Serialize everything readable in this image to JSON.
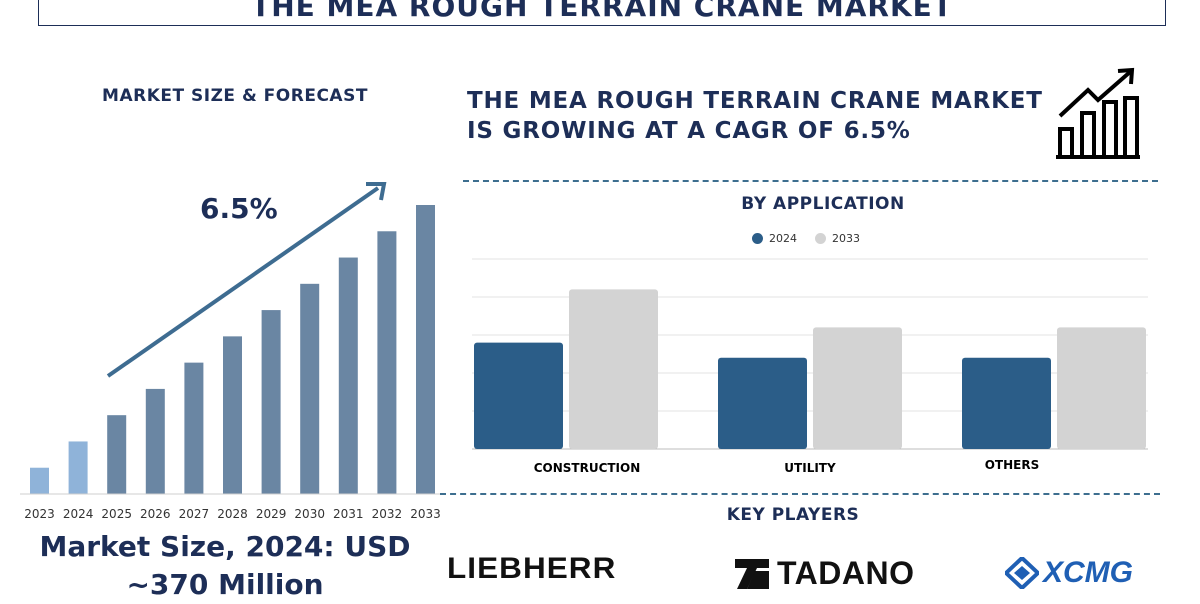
{
  "title": "THE MEA ROUGH TERRAIN CRANE MARKET",
  "left_panel": {
    "heading": "MARKET SIZE & FORECAST",
    "cagr_label": "6.5%",
    "market_size_line1": "Market Size, 2024: USD",
    "market_size_line2": "~370 Million"
  },
  "right_panel": {
    "headline_line1": "THE MEA ROUGH TERRAIN CRANE MARKET",
    "headline_line2": "IS GROWING AT A CAGR OF 6.5%",
    "application_heading": "BY APPLICATION",
    "key_players_heading": "KEY PLAYERS",
    "players": [
      "LIEBHERR",
      "TADANO",
      "XCMG"
    ]
  },
  "colors": {
    "navy": "#1d2e57",
    "bar_history": "#8fb3d9",
    "bar_forecast": "#6a86a3",
    "series_2024": "#2b5d88",
    "series_2033": "#d3d3d3",
    "xcmg_blue": "#1f5fb4"
  },
  "icons": [
    "growth-chart-icon",
    "tadano-logo-icon",
    "xcmg-logo-icon"
  ],
  "chart_data": [
    {
      "type": "bar",
      "categories": [
        "2023",
        "2024",
        "2025",
        "2026",
        "2027",
        "2028",
        "2029",
        "2030",
        "2031",
        "2032",
        "2033"
      ],
      "values": [
        1,
        2,
        3,
        4,
        5,
        6,
        7,
        8,
        9,
        10,
        11
      ],
      "title": "MARKET SIZE & FORECAST",
      "annotation": "6.5%",
      "ylim": [
        0,
        11
      ]
    },
    {
      "type": "bar",
      "title": "BY APPLICATION",
      "categories": [
        "CONSTRUCTION",
        "UTILITY",
        "OTHERS"
      ],
      "series": [
        {
          "name": "2024",
          "values": [
            2.8,
            2.4,
            2.4
          ]
        },
        {
          "name": "2033",
          "values": [
            4.2,
            3.2,
            3.2
          ]
        }
      ],
      "ylim": [
        0,
        5
      ],
      "grid": true,
      "legend": "top-center"
    }
  ]
}
